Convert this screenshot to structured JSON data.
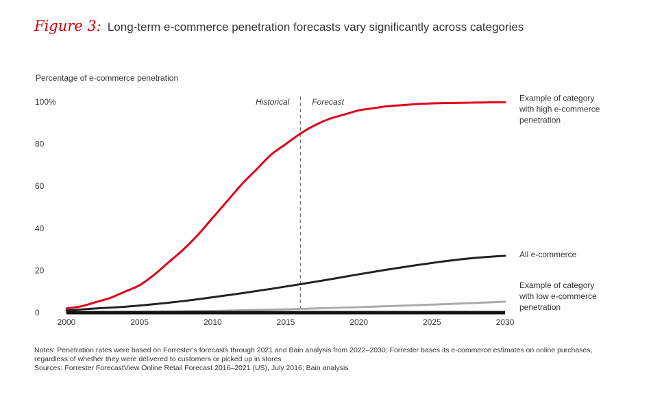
{
  "figure": {
    "label": "Figure 3:",
    "title": "Long-term e-commerce penetration forecasts vary significantly across categories"
  },
  "chart_data": {
    "type": "line",
    "ylabel": "Percentage of e-commerce penetration",
    "xlim": [
      2000,
      2030
    ],
    "ylim": [
      0,
      100
    ],
    "x_ticks": [
      2000,
      2005,
      2010,
      2015,
      2020,
      2025,
      2030
    ],
    "y_ticks": [
      {
        "value": 0,
        "label": "0"
      },
      {
        "value": 20,
        "label": "20"
      },
      {
        "value": 40,
        "label": "40"
      },
      {
        "value": 60,
        "label": "60"
      },
      {
        "value": 80,
        "label": "80"
      },
      {
        "value": 100,
        "label": "100%"
      }
    ],
    "divider": {
      "x": 2016,
      "left_label": "Historical",
      "right_label": "Forecast"
    },
    "series": [
      {
        "name": "Example of category with high e-commerce penetration",
        "label_lines": [
          "Example of category",
          "with high e-commerce",
          "penetration"
        ],
        "color": "#e0001b",
        "x": [
          2000,
          2001,
          2002,
          2003,
          2004,
          2005,
          2006,
          2007,
          2008,
          2009,
          2010,
          2011,
          2012,
          2013,
          2014,
          2015,
          2016,
          2017,
          2018,
          2019,
          2020,
          2021,
          2022,
          2023,
          2024,
          2025,
          2026,
          2027,
          2028,
          2029,
          2030
        ],
        "values": [
          2,
          3,
          5,
          7,
          10,
          13,
          18,
          24,
          30,
          37,
          45,
          53,
          61,
          68,
          75,
          80,
          85,
          89,
          92,
          94,
          96,
          97,
          98,
          98.5,
          99,
          99.3,
          99.5,
          99.6,
          99.7,
          99.8,
          99.8
        ]
      },
      {
        "name": "All e-commerce",
        "label_lines": [
          "All e-commerce"
        ],
        "color": "#222222",
        "x": [
          2000,
          2002,
          2004,
          2006,
          2008,
          2010,
          2012,
          2014,
          2016,
          2018,
          2020,
          2022,
          2024,
          2026,
          2028,
          2030
        ],
        "values": [
          1,
          2,
          2.8,
          4,
          5.5,
          7.3,
          9.2,
          11.3,
          13.5,
          15.8,
          18.2,
          20.5,
          22.6,
          24.5,
          26,
          27
        ]
      },
      {
        "name": "Example of category with low e-commerce penetration",
        "label_lines": [
          "Example of category",
          "with low e-commerce",
          "penetration"
        ],
        "color": "#aaaaaa",
        "x": [
          2000,
          2005,
          2010,
          2015,
          2020,
          2025,
          2030
        ],
        "values": [
          0.2,
          0.4,
          0.8,
          1.6,
          2.6,
          3.8,
          5.2
        ]
      }
    ]
  },
  "notes": {
    "note": "Notes: Penetration rates were based on Forrester's forecasts through 2021 and Bain analysis from 2022–2030; Forrester bases its e-commerce estimates on online purchases, regardless of whether they were delivered to customers or picked up in stores",
    "sources": "Sources: Forrester ForecastView Online Retail Forecast 2016–2021 (US), July 2016; Bain analysis"
  }
}
